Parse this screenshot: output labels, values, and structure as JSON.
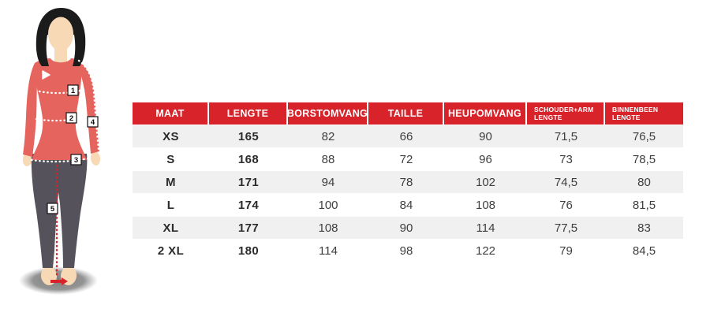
{
  "title": "womens-size-chart",
  "colors": {
    "header_bg": "#d8232a",
    "header_text": "#ffffff",
    "row_alt_bg": "#f0f0f0",
    "row_bg": "#ffffff",
    "cell_text": "#3e3e3e",
    "shirt_red": "#e5645e",
    "leggings_gray": "#56525b",
    "skin": "#f7d9b6",
    "hair": "#1b1b1b",
    "measure_line_white": "#ffffff",
    "measure_line_red": "#d8232a"
  },
  "figure": {
    "description": "illustrated woman with measurement markers",
    "markers": [
      "1",
      "2",
      "3",
      "4",
      "5"
    ]
  },
  "table": {
    "column_keys": [
      "maat",
      "lengte",
      "borstomvang",
      "taille",
      "heupomvang",
      "schouder-arm-lengte",
      "binnenbeen-lengte"
    ],
    "headers": [
      {
        "line1": "MAAT",
        "line2": "",
        "small": false
      },
      {
        "line1": "LENGTE",
        "line2": "",
        "small": false
      },
      {
        "line1": "BORSTOMVANG",
        "line2": "",
        "small": false
      },
      {
        "line1": "TAILLE",
        "line2": "",
        "small": false
      },
      {
        "line1": "HEUPOMVANG",
        "line2": "",
        "small": false
      },
      {
        "line1": "SCHOUDER+ARM",
        "line2": "LENGTE",
        "small": true
      },
      {
        "line1": "BINNENBEEN",
        "line2": "LENGTE",
        "small": true
      }
    ],
    "rows": [
      [
        "XS",
        "165",
        "82",
        "66",
        "90",
        "71,5",
        "76,5"
      ],
      [
        "S",
        "168",
        "88",
        "72",
        "96",
        "73",
        "78,5"
      ],
      [
        "M",
        "171",
        "94",
        "78",
        "102",
        "74,5",
        "80"
      ],
      [
        "L",
        "174",
        "100",
        "84",
        "108",
        "76",
        "81,5"
      ],
      [
        "XL",
        "177",
        "108",
        "90",
        "114",
        "77,5",
        "83"
      ],
      [
        "2 XL",
        "180",
        "114",
        "98",
        "122",
        "79",
        "84,5"
      ]
    ]
  },
  "chart_data": {
    "type": "table",
    "title": "",
    "columns": [
      "MAAT",
      "LENGTE",
      "BORSTOMVANG",
      "TAILLE",
      "HEUPOMVANG",
      "SCHOUDER+ARM LENGTE",
      "BINNENBEEN LENGTE"
    ],
    "rows": [
      [
        "XS",
        165,
        82,
        66,
        90,
        71.5,
        76.5
      ],
      [
        "S",
        168,
        88,
        72,
        96,
        73,
        78.5
      ],
      [
        "M",
        171,
        94,
        78,
        102,
        74.5,
        80
      ],
      [
        "L",
        174,
        100,
        84,
        108,
        76,
        81.5
      ],
      [
        "XL",
        177,
        108,
        90,
        114,
        77.5,
        83
      ],
      [
        "2 XL",
        180,
        114,
        98,
        122,
        79,
        84.5
      ]
    ],
    "decimal_separator": ","
  }
}
